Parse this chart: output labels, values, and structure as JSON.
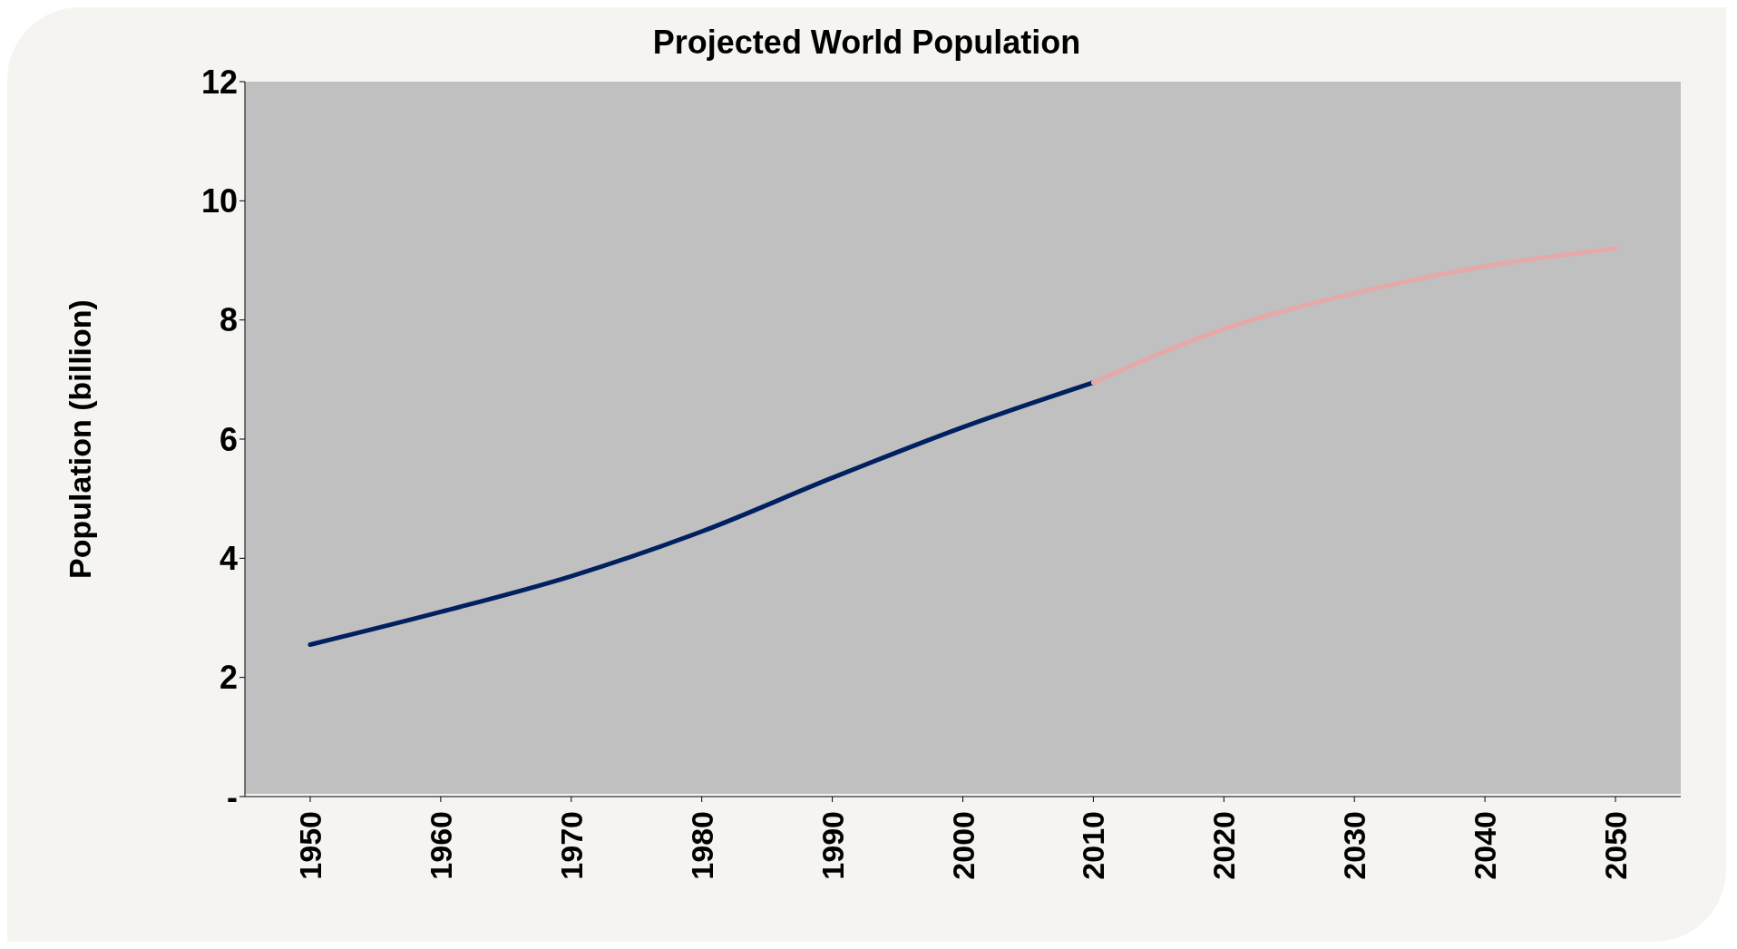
{
  "chart_data": {
    "type": "line",
    "title": "Projected World Population",
    "ylabel": "Population (billion)",
    "categories": [
      "1950",
      "1960",
      "1970",
      "1980",
      "1990",
      "2000",
      "2010",
      "2020",
      "2030",
      "2040",
      "2050"
    ],
    "series": [
      {
        "color": "#002060",
        "values": [
          2.55,
          3.1,
          3.7,
          4.45,
          5.35,
          6.2,
          6.95,
          null,
          null,
          null,
          null
        ]
      },
      {
        "color": "#e6a9a9",
        "values": [
          null,
          null,
          null,
          null,
          null,
          null,
          6.95,
          7.85,
          8.45,
          8.9,
          9.2
        ]
      }
    ],
    "ylim": [
      0,
      12
    ],
    "yticks": [
      {
        "value": 0,
        "label": "-"
      },
      2,
      4,
      6,
      8,
      10,
      12
    ],
    "grid": false,
    "legend": false,
    "marker": "none",
    "line_style": "solid"
  }
}
